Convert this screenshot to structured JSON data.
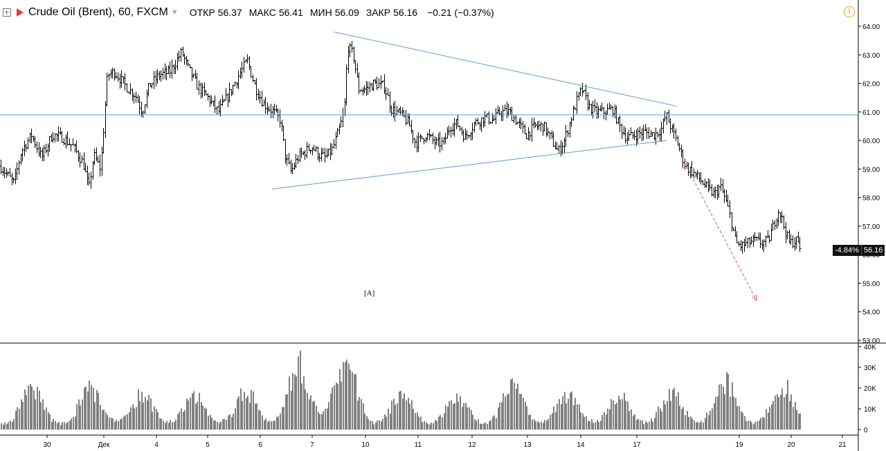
{
  "header": {
    "symbol": "Crude Oil (Brent), 60, FXCM",
    "open_label": "ОТКР",
    "open_value": "56.37",
    "high_label": "МАКС",
    "high_value": "56.41",
    "low_label": "МИН",
    "low_value": "56.09",
    "close_label": "ЗАКР",
    "close_value": "56.16",
    "change": "−0.21 (−0.37%)"
  },
  "price_badge": {
    "change_pct": "-4.84%",
    "last_price": "56.16"
  },
  "annotation": "[A]",
  "colors": {
    "bars": "#000000",
    "trendline": "#5b9bd5",
    "forecast_arrow": "#e05050",
    "volume": "#808080",
    "flag": "#e8393b",
    "warning": "#f0a020"
  },
  "chart_data": {
    "type": "ohlc",
    "title": "Crude Oil (Brent), 60, FXCM",
    "price_axis": {
      "ylim": [
        53.0,
        64.5
      ],
      "tick_labels": [
        "64.00",
        "63.00",
        "62.00",
        "61.00",
        "60.00",
        "59.00",
        "58.00",
        "57.00",
        "56.00",
        "55.00",
        "54.00",
        "53.00"
      ]
    },
    "volume_axis": {
      "ylim": [
        0,
        42000
      ],
      "tick_labels": [
        "40K",
        "30K",
        "20K",
        "10K",
        "0"
      ]
    },
    "x_tick_labels": [
      "30",
      "Дек",
      "4",
      "5",
      "6",
      "7",
      "10",
      "11",
      "12",
      "13",
      "14",
      "17",
      "19",
      "20",
      "21"
    ],
    "close_path": [
      {
        "x": 0,
        "y": 59.1
      },
      {
        "x": 20,
        "y": 58.5
      },
      {
        "x": 30,
        "y": 59.6
      },
      {
        "x": 45,
        "y": 60.2
      },
      {
        "x": 60,
        "y": 59.4
      },
      {
        "x": 75,
        "y": 60.2
      },
      {
        "x": 90,
        "y": 60.1
      },
      {
        "x": 105,
        "y": 59.8
      },
      {
        "x": 120,
        "y": 59.2
      },
      {
        "x": 128,
        "y": 58.3
      },
      {
        "x": 135,
        "y": 59.5
      },
      {
        "x": 145,
        "y": 59.0
      },
      {
        "x": 155,
        "y": 62.3
      },
      {
        "x": 165,
        "y": 62.4
      },
      {
        "x": 175,
        "y": 62.1
      },
      {
        "x": 185,
        "y": 61.8
      },
      {
        "x": 195,
        "y": 61.6
      },
      {
        "x": 205,
        "y": 61.0
      },
      {
        "x": 215,
        "y": 61.9
      },
      {
        "x": 230,
        "y": 62.3
      },
      {
        "x": 245,
        "y": 62.4
      },
      {
        "x": 262,
        "y": 63.1
      },
      {
        "x": 272,
        "y": 62.5
      },
      {
        "x": 285,
        "y": 61.9
      },
      {
        "x": 300,
        "y": 61.5
      },
      {
        "x": 315,
        "y": 61.0
      },
      {
        "x": 330,
        "y": 61.6
      },
      {
        "x": 345,
        "y": 62.3
      },
      {
        "x": 357,
        "y": 62.8
      },
      {
        "x": 368,
        "y": 61.9
      },
      {
        "x": 380,
        "y": 61.3
      },
      {
        "x": 395,
        "y": 61.0
      },
      {
        "x": 405,
        "y": 60.7
      },
      {
        "x": 412,
        "y": 59.4
      },
      {
        "x": 420,
        "y": 58.9
      },
      {
        "x": 430,
        "y": 59.4
      },
      {
        "x": 440,
        "y": 59.6
      },
      {
        "x": 450,
        "y": 59.8
      },
      {
        "x": 460,
        "y": 59.5
      },
      {
        "x": 470,
        "y": 59.4
      },
      {
        "x": 480,
        "y": 59.7
      },
      {
        "x": 490,
        "y": 60.4
      },
      {
        "x": 497,
        "y": 61.0
      },
      {
        "x": 502,
        "y": 63.3
      },
      {
        "x": 510,
        "y": 63.0
      },
      {
        "x": 518,
        "y": 61.8
      },
      {
        "x": 528,
        "y": 61.8
      },
      {
        "x": 540,
        "y": 62.0
      },
      {
        "x": 555,
        "y": 61.9
      },
      {
        "x": 565,
        "y": 61.1
      },
      {
        "x": 580,
        "y": 60.9
      },
      {
        "x": 590,
        "y": 60.6
      },
      {
        "x": 600,
        "y": 59.9
      },
      {
        "x": 615,
        "y": 60.2
      },
      {
        "x": 630,
        "y": 59.9
      },
      {
        "x": 640,
        "y": 59.9
      },
      {
        "x": 650,
        "y": 60.5
      },
      {
        "x": 660,
        "y": 60.6
      },
      {
        "x": 672,
        "y": 60.1
      },
      {
        "x": 685,
        "y": 60.6
      },
      {
        "x": 700,
        "y": 60.8
      },
      {
        "x": 712,
        "y": 60.7
      },
      {
        "x": 722,
        "y": 61.0
      },
      {
        "x": 735,
        "y": 61.0
      },
      {
        "x": 748,
        "y": 60.6
      },
      {
        "x": 760,
        "y": 60.2
      },
      {
        "x": 772,
        "y": 60.5
      },
      {
        "x": 785,
        "y": 60.5
      },
      {
        "x": 797,
        "y": 60.0
      },
      {
        "x": 806,
        "y": 59.6
      },
      {
        "x": 815,
        "y": 60.0
      },
      {
        "x": 825,
        "y": 60.8
      },
      {
        "x": 833,
        "y": 61.4
      },
      {
        "x": 840,
        "y": 61.8
      },
      {
        "x": 850,
        "y": 61.2
      },
      {
        "x": 860,
        "y": 61.0
      },
      {
        "x": 872,
        "y": 61.0
      },
      {
        "x": 885,
        "y": 61.1
      },
      {
        "x": 895,
        "y": 60.5
      },
      {
        "x": 905,
        "y": 60.1
      },
      {
        "x": 918,
        "y": 60.2
      },
      {
        "x": 930,
        "y": 60.3
      },
      {
        "x": 945,
        "y": 60.2
      },
      {
        "x": 955,
        "y": 60.4
      },
      {
        "x": 962,
        "y": 60.9
      },
      {
        "x": 970,
        "y": 60.4
      },
      {
        "x": 980,
        "y": 59.8
      },
      {
        "x": 990,
        "y": 59.1
      },
      {
        "x": 1000,
        "y": 58.9
      },
      {
        "x": 1012,
        "y": 58.6
      },
      {
        "x": 1022,
        "y": 58.3
      },
      {
        "x": 1032,
        "y": 58.1
      },
      {
        "x": 1040,
        "y": 58.4
      },
      {
        "x": 1048,
        "y": 57.9
      },
      {
        "x": 1055,
        "y": 57.3
      },
      {
        "x": 1063,
        "y": 56.4
      },
      {
        "x": 1070,
        "y": 56.3
      },
      {
        "x": 1080,
        "y": 56.4
      },
      {
        "x": 1090,
        "y": 56.5
      },
      {
        "x": 1100,
        "y": 56.4
      },
      {
        "x": 1110,
        "y": 56.5
      },
      {
        "x": 1118,
        "y": 57.1
      },
      {
        "x": 1125,
        "y": 57.6
      },
      {
        "x": 1132,
        "y": 57.0
      },
      {
        "x": 1140,
        "y": 56.4
      },
      {
        "x": 1150,
        "y": 56.5
      },
      {
        "x": 1158,
        "y": 56.16
      }
    ],
    "volume_bursts": [
      {
        "x": 45,
        "peak": 22000
      },
      {
        "x": 130,
        "peak": 23000
      },
      {
        "x": 205,
        "peak": 19000
      },
      {
        "x": 280,
        "peak": 18000
      },
      {
        "x": 355,
        "peak": 20000
      },
      {
        "x": 430,
        "peak": 37000
      },
      {
        "x": 498,
        "peak": 39000
      },
      {
        "x": 580,
        "peak": 20000
      },
      {
        "x": 660,
        "peak": 17000
      },
      {
        "x": 740,
        "peak": 25000
      },
      {
        "x": 818,
        "peak": 20000
      },
      {
        "x": 893,
        "peak": 18000
      },
      {
        "x": 970,
        "peak": 20000
      },
      {
        "x": 1048,
        "peak": 26000
      },
      {
        "x": 1130,
        "peak": 24000
      }
    ],
    "trendlines": [
      {
        "kind": "upper",
        "from": {
          "x": 483,
          "y": 63.8
        },
        "to": {
          "x": 978,
          "y": 61.2
        }
      },
      {
        "kind": "lower",
        "from": {
          "x": 393,
          "y": 58.3
        },
        "to": {
          "x": 963,
          "y": 60.0
        }
      },
      {
        "kind": "horizontal",
        "y": 60.9
      },
      {
        "kind": "forecast",
        "from": {
          "x": 985,
          "y": 59.4
        },
        "to": {
          "x": 1093,
          "y": 54.4
        }
      }
    ]
  }
}
